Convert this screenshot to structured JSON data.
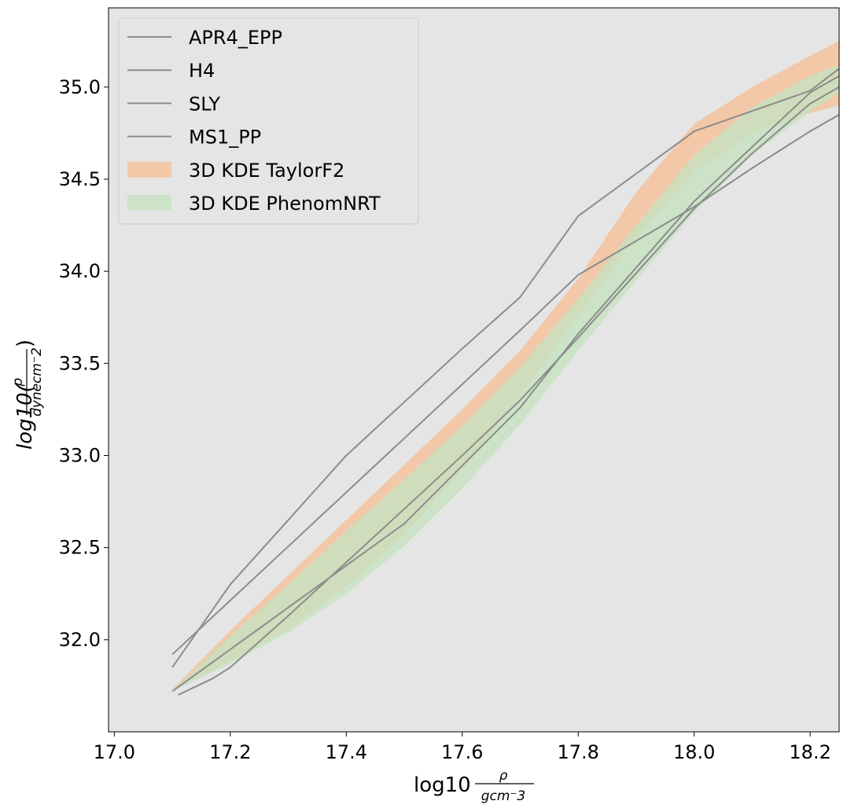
{
  "chart_data": {
    "type": "line",
    "title": "",
    "xlabel": {
      "main": "log10",
      "num": "ρ",
      "den": "gcm⁻3"
    },
    "ylabel": {
      "prefix": "log10(",
      "num": "p",
      "den": "dynecm⁻2",
      "suffix": ")"
    },
    "xlim": [
      16.99,
      18.25
    ],
    "ylim": [
      31.5,
      35.43
    ],
    "xticks": [
      17.0,
      17.2,
      17.4,
      17.6,
      17.8,
      18.0,
      18.2
    ],
    "xtick_labels": [
      "17.0",
      "17.2",
      "17.4",
      "17.6",
      "17.8",
      "18.0",
      "18.2"
    ],
    "yticks": [
      32.0,
      32.5,
      33.0,
      33.5,
      34.0,
      34.5,
      35.0
    ],
    "ytick_labels": [
      "32.0",
      "32.5",
      "33.0",
      "33.5",
      "34.0",
      "34.5",
      "35.0"
    ],
    "grid": false,
    "background": "#e5e5e5",
    "legend": {
      "location": "top-left"
    },
    "series": [
      {
        "name": "APR4_EPP",
        "color": "#8c8c8c",
        "x": [
          17.1,
          17.5,
          17.7,
          17.8,
          18.0,
          18.2,
          18.25
        ],
        "y": [
          31.72,
          32.63,
          33.26,
          33.66,
          34.38,
          34.97,
          35.06
        ]
      },
      {
        "name": "H4",
        "color": "#8c8c8c",
        "x": [
          17.1,
          17.2,
          17.4,
          17.6,
          17.7,
          17.8,
          18.0,
          18.2,
          18.25
        ],
        "y": [
          31.85,
          32.3,
          33.0,
          33.58,
          33.86,
          34.3,
          34.76,
          34.98,
          35.1
        ]
      },
      {
        "name": "SLY",
        "color": "#8c8c8c",
        "x": [
          17.11,
          17.17,
          17.2,
          17.3,
          17.4,
          17.5,
          17.6,
          17.7,
          17.8,
          17.9,
          18.0,
          18.1,
          18.2,
          18.25
        ],
        "y": [
          31.7,
          31.79,
          31.85,
          32.13,
          32.42,
          32.71,
          33.0,
          33.3,
          33.64,
          33.99,
          34.34,
          34.64,
          34.91,
          35.0
        ]
      },
      {
        "name": "MS1_PP",
        "color": "#8c8c8c",
        "x": [
          17.1,
          17.7,
          17.8,
          18.0,
          18.1,
          18.2,
          18.25
        ],
        "y": [
          31.92,
          33.68,
          33.98,
          34.35,
          34.56,
          34.76,
          34.85
        ]
      }
    ],
    "bands": [
      {
        "name": "3D KDE TaylorF2",
        "color": "#f5c099",
        "opacity": 0.8,
        "x": [
          17.1,
          17.2,
          17.3,
          17.4,
          17.5,
          17.6,
          17.7,
          17.8,
          17.9,
          18.0,
          18.1,
          18.2,
          18.25
        ],
        "lower": [
          31.73,
          31.88,
          32.06,
          32.29,
          32.57,
          32.92,
          33.32,
          33.76,
          34.18,
          34.54,
          34.75,
          34.86,
          34.9
        ],
        "upper": [
          31.73,
          32.05,
          32.35,
          32.65,
          32.95,
          33.25,
          33.57,
          33.96,
          34.43,
          34.8,
          35.0,
          35.17,
          35.25
        ]
      },
      {
        "name": "3D KDE PhenomNRT",
        "color": "#c5e2c0",
        "opacity": 0.8,
        "x": [
          17.1,
          17.2,
          17.3,
          17.4,
          17.5,
          17.6,
          17.7,
          17.8,
          17.9,
          18.0,
          18.1,
          18.2,
          18.25
        ],
        "lower": [
          31.72,
          31.87,
          32.04,
          32.25,
          32.51,
          32.82,
          33.17,
          33.57,
          33.95,
          34.32,
          34.63,
          34.87,
          34.97
        ],
        "upper": [
          31.72,
          32.02,
          32.3,
          32.59,
          32.87,
          33.16,
          33.48,
          33.85,
          34.25,
          34.63,
          34.89,
          35.06,
          35.12
        ]
      }
    ]
  }
}
